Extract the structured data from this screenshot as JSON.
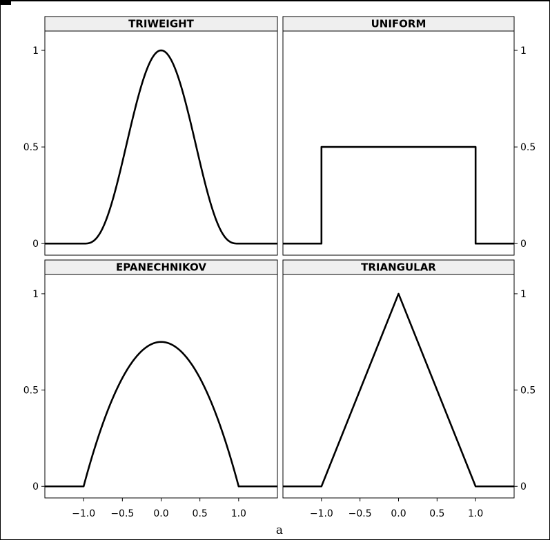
{
  "chart_data": {
    "type": "line",
    "layout": "2x2 facets",
    "xlabel": "a",
    "ylabel": "",
    "xlim": [
      -1.5,
      1.5
    ],
    "ylim": [
      -0.06,
      1.1
    ],
    "x_ticks": [
      -1.0,
      -0.5,
      0.0,
      0.5,
      1.0
    ],
    "x_tick_labels": [
      "−1.0",
      "−0.5",
      "0.0",
      "0.5",
      "1.0"
    ],
    "y_ticks": [
      0,
      0.5,
      1
    ],
    "y_tick_labels": [
      "0",
      "0.5",
      "1"
    ],
    "grid": false,
    "panels": [
      {
        "title": "TRIWEIGHT",
        "kernel": "triweight",
        "x": [
          -1.5,
          -1.0,
          -0.8,
          -0.6,
          -0.4,
          -0.2,
          0.0,
          0.2,
          0.4,
          0.6,
          0.8,
          1.0,
          1.5
        ],
        "y": [
          0,
          0,
          0.047,
          0.262,
          0.593,
          0.885,
          1.0,
          0.885,
          0.593,
          0.262,
          0.047,
          0,
          0
        ]
      },
      {
        "title": "UNIFORM",
        "kernel": "uniform",
        "x": [
          -1.5,
          -1.0,
          -1.0,
          1.0,
          1.0,
          1.5
        ],
        "y": [
          0,
          0,
          0.5,
          0.5,
          0,
          0
        ]
      },
      {
        "title": "EPANECHNIKOV",
        "kernel": "epanechnikov",
        "x": [
          -1.5,
          -1.0,
          -0.75,
          -0.5,
          -0.25,
          0.0,
          0.25,
          0.5,
          0.75,
          1.0,
          1.5
        ],
        "y": [
          0,
          0,
          0.328,
          0.5625,
          0.703,
          0.75,
          0.703,
          0.5625,
          0.328,
          0,
          0
        ]
      },
      {
        "title": "TRIANGULAR",
        "kernel": "triangular",
        "x": [
          -1.5,
          -1.0,
          0.0,
          1.0,
          1.5
        ],
        "y": [
          0,
          0,
          1.0,
          0,
          0
        ]
      }
    ]
  }
}
